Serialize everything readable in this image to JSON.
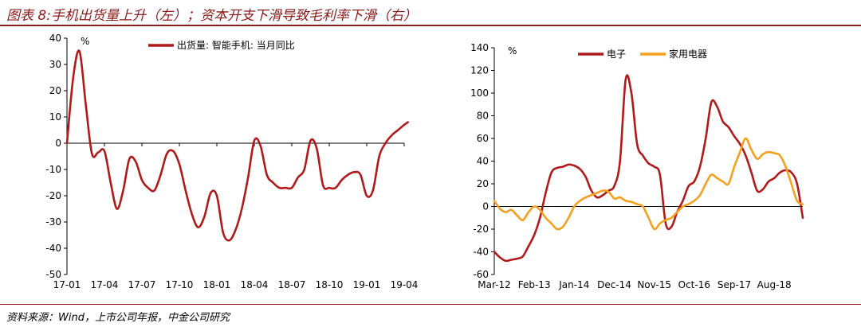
{
  "figure_title": "图表 8:手机出货量上升（左）；资本开支下滑导致毛利率下滑（右）",
  "source_note": "资料来源：Wind，上市公司年报，中金公司研究",
  "colors": {
    "dark_red": "#b11a1a",
    "orange": "#f5a01e",
    "title_red": "#8b1a1a"
  },
  "chart_data": [
    {
      "type": "line",
      "ylabel": "%",
      "ylim": [
        -50,
        40
      ],
      "yticks": [
        -50,
        -40,
        -30,
        -20,
        -10,
        0,
        10,
        20,
        30,
        40
      ],
      "xlim": [
        0,
        27
      ],
      "xtick_labels": [
        "17-01",
        "17-04",
        "17-07",
        "17-10",
        "18-01",
        "18-04",
        "18-07",
        "18-10",
        "19-01",
        "19-04"
      ],
      "xtick_positions": [
        0,
        3,
        6,
        9,
        12,
        15,
        18,
        21,
        24,
        27
      ],
      "legend_position": "top-center",
      "series": [
        {
          "name": "出货量: 智能手机: 当月同比",
          "color": "#b11a1a",
          "x": [
            0,
            0.5,
            1,
            1.5,
            2,
            2.5,
            3,
            3.5,
            4,
            4.5,
            5,
            5.5,
            6,
            6.5,
            7,
            7.5,
            8,
            8.5,
            9,
            9.5,
            10,
            10.5,
            11,
            11.5,
            12,
            12.5,
            13,
            13.5,
            14,
            14.5,
            15,
            15.5,
            16,
            16.5,
            17,
            17.5,
            18,
            18.5,
            19,
            19.5,
            20,
            20.5,
            21,
            21.5,
            22,
            22.5,
            23,
            23.5,
            24,
            24.5,
            25,
            25.5,
            26,
            26.5,
            27,
            27.3
          ],
          "values": [
            0,
            25,
            35,
            15,
            -4,
            -3.5,
            -3,
            -15,
            -25,
            -18,
            -6,
            -7,
            -14,
            -17,
            -18,
            -12,
            -4,
            -3,
            -8,
            -18,
            -27,
            -32,
            -28,
            -19,
            -20,
            -34,
            -37,
            -33,
            -25,
            -13,
            1,
            -1,
            -12,
            -15,
            -17,
            -17,
            -17,
            -13,
            -10,
            1,
            -2,
            -16,
            -17,
            -17,
            -14,
            -12,
            -11,
            -12,
            -20,
            -18,
            -5,
            0,
            3,
            5,
            7,
            8
          ]
        }
      ]
    },
    {
      "type": "line",
      "ylabel": "%",
      "ylim": [
        -60,
        140
      ],
      "yticks": [
        -60,
        -40,
        -20,
        0,
        20,
        40,
        60,
        80,
        100,
        120,
        140
      ],
      "xlim": [
        0,
        27
      ],
      "xtick_labels": [
        "Mar-12",
        "Feb-13",
        "Jan-14",
        "Dec-14",
        "Nov-15",
        "Oct-16",
        "Sep-17",
        "Aug-18"
      ],
      "xtick_positions": [
        0,
        3.5,
        7,
        10.5,
        14,
        17.5,
        21,
        24.5
      ],
      "legend_position": "top-center",
      "series": [
        {
          "name": "电子",
          "color": "#b11a1a",
          "x": [
            0,
            0.5,
            1,
            1.5,
            2,
            2.5,
            3,
            3.5,
            4,
            4.5,
            5,
            5.5,
            6,
            6.5,
            7,
            7.5,
            8,
            8.5,
            9,
            9.5,
            10,
            10.5,
            11,
            11.5,
            12,
            12.5,
            13,
            13.5,
            14,
            14.5,
            15,
            15.5,
            16,
            16.5,
            17,
            17.5,
            18,
            18.5,
            19,
            19.5,
            20,
            20.5,
            21,
            21.5,
            22,
            22.5,
            23,
            23.5,
            24,
            24.5,
            25,
            25.5,
            26,
            26.5,
            27
          ],
          "values": [
            -40,
            -45,
            -48,
            -47,
            -46,
            -44,
            -35,
            -25,
            -10,
            12,
            30,
            34,
            35,
            37,
            36,
            33,
            26,
            14,
            8,
            10,
            14,
            18,
            40,
            112,
            100,
            55,
            45,
            38,
            35,
            28,
            -15,
            -18,
            -5,
            5,
            18,
            22,
            35,
            60,
            92,
            88,
            75,
            70,
            62,
            55,
            45,
            30,
            14,
            15,
            22,
            25,
            30,
            32,
            30,
            20,
            -10
          ]
        },
        {
          "name": "家用电器",
          "color": "#f5a01e",
          "x": [
            0,
            0.5,
            1,
            1.5,
            2,
            2.5,
            3,
            3.5,
            4,
            4.5,
            5,
            5.5,
            6,
            6.5,
            7,
            7.5,
            8,
            8.5,
            9,
            9.5,
            10,
            10.5,
            11,
            11.5,
            12,
            12.5,
            13,
            13.5,
            14,
            14.5,
            15,
            15.5,
            16,
            16.5,
            17,
            17.5,
            18,
            18.5,
            19,
            19.5,
            20,
            20.5,
            21,
            21.5,
            22,
            22.5,
            23,
            23.5,
            24,
            24.5,
            25,
            25.5,
            26,
            26.5,
            27
          ],
          "values": [
            5,
            -2,
            -5,
            -3,
            -8,
            -12,
            -5,
            0,
            -3,
            -10,
            -15,
            -20,
            -18,
            -10,
            0,
            5,
            8,
            10,
            12,
            14,
            13,
            7,
            8,
            5,
            4,
            2,
            0,
            -10,
            -20,
            -15,
            -12,
            -10,
            -5,
            0,
            2,
            5,
            10,
            20,
            28,
            25,
            22,
            20,
            35,
            48,
            60,
            50,
            42,
            46,
            48,
            47,
            45,
            35,
            20,
            5,
            2
          ]
        }
      ]
    }
  ]
}
